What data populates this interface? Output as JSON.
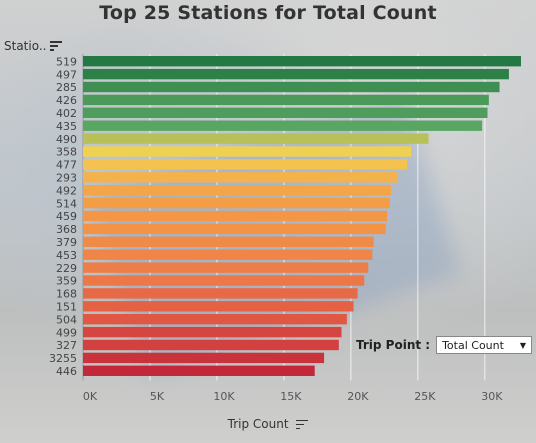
{
  "title": "Top 25 Stations for Total Count",
  "y_header": "Statio..",
  "x_axis_title": "Trip Count",
  "filter": {
    "label": "Trip Point :",
    "value": "Total Count"
  },
  "chart_data": {
    "type": "bar",
    "orientation": "horizontal",
    "title": "Top 25 Stations for Total Count",
    "xlabel": "Trip Count",
    "ylabel": "Statio..",
    "xlim": [
      0,
      33000
    ],
    "x_ticks": [
      0,
      5000,
      10000,
      15000,
      20000,
      25000,
      30000
    ],
    "x_tick_labels": [
      "0K",
      "5K",
      "10K",
      "15K",
      "20K",
      "25K",
      "30K"
    ],
    "grid": "vertical",
    "color_scale": "diverging red-yellow-green",
    "categories": [
      "519",
      "497",
      "285",
      "426",
      "402",
      "435",
      "490",
      "358",
      "477",
      "293",
      "492",
      "514",
      "459",
      "368",
      "379",
      "453",
      "229",
      "359",
      "168",
      "151",
      "504",
      "499",
      "327",
      "3255",
      "446"
    ],
    "values": [
      32700,
      31800,
      31100,
      30300,
      30200,
      29800,
      25800,
      24500,
      24200,
      23500,
      23000,
      22900,
      22700,
      22600,
      21700,
      21600,
      21300,
      21000,
      20500,
      20200,
      19700,
      19300,
      19100,
      18000,
      17300
    ],
    "colors": [
      "#237844",
      "#2e8049",
      "#3f8e52",
      "#4c9a5a",
      "#4f9d5c",
      "#59a663",
      "#b8c05a",
      "#efd152",
      "#f3c24f",
      "#f4b24c",
      "#f4a548",
      "#f39d47",
      "#f39746",
      "#f39346",
      "#f08a47",
      "#ef8547",
      "#ee7e47",
      "#ec7747",
      "#e86945",
      "#e56144",
      "#e05743",
      "#d74541",
      "#d2403f",
      "#c9333c",
      "#c3283a"
    ]
  }
}
